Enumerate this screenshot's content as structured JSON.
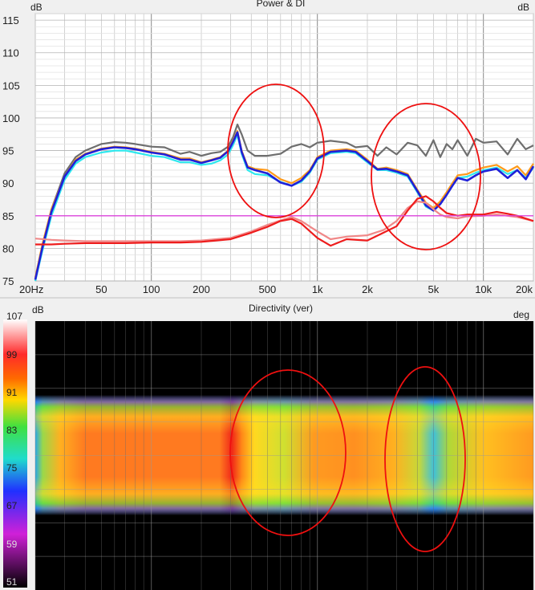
{
  "chart_data": [
    {
      "type": "line",
      "title": "Power & DI",
      "y_unit_left": "dB",
      "y_unit_right": "dB",
      "x_scale": "log",
      "xlim": [
        20,
        20000
      ],
      "ylim": [
        75,
        116
      ],
      "x_ticks": [
        20,
        50,
        100,
        200,
        500,
        1000,
        2000,
        5000,
        10000,
        20000
      ],
      "x_tick_labels": [
        "20Hz",
        "50",
        "100",
        "200",
        "500",
        "1k",
        "2k",
        "5k",
        "10k",
        "20k"
      ],
      "y_ticks": [
        75,
        80,
        85,
        90,
        95,
        100,
        105,
        110,
        115
      ],
      "y_tick_labels": [
        "75",
        "80",
        "85",
        "90",
        "95",
        "100",
        "105",
        "110",
        "115"
      ],
      "grid": true,
      "series": [
        {
          "color": "#6e6e6e",
          "width": 2.2,
          "x": [
            20,
            22,
            25,
            30,
            35,
            40,
            50,
            60,
            70,
            80,
            100,
            120,
            150,
            170,
            200,
            230,
            260,
            290,
            310,
            330,
            350,
            380,
            420,
            500,
            600,
            700,
            800,
            900,
            1000,
            1200,
            1500,
            1700,
            2000,
            2300,
            2600,
            3000,
            3500,
            4000,
            4500,
            5000,
            5500,
            6000,
            6500,
            7000,
            8000,
            9000,
            10000,
            12000,
            14000,
            16000,
            18000,
            20000
          ],
          "values": [
            75,
            80,
            86,
            91.5,
            94,
            95,
            96,
            96.3,
            96.2,
            96,
            95.6,
            95.5,
            94.5,
            94.8,
            94.2,
            94.6,
            94.8,
            95.6,
            97,
            99,
            97.5,
            95,
            94.2,
            94.2,
            94.5,
            95.6,
            96,
            95.5,
            96.2,
            96.5,
            96.2,
            95.5,
            95.7,
            94.2,
            95.5,
            94.4,
            96.2,
            95.8,
            94.2,
            96.6,
            94,
            96,
            95.2,
            96.6,
            94.2,
            96.8,
            96.2,
            96.4,
            94.4,
            96.8,
            95.2,
            95.8
          ]
        },
        {
          "color": "#ff9a1a",
          "width": 2.2,
          "x": [
            20,
            22,
            25,
            30,
            35,
            40,
            50,
            60,
            70,
            80,
            100,
            120,
            150,
            170,
            200,
            230,
            260,
            290,
            310,
            330,
            350,
            380,
            420,
            500,
            600,
            700,
            800,
            900,
            1000,
            1200,
            1500,
            1700,
            2000,
            2300,
            2600,
            3000,
            3500,
            4000,
            4500,
            5000,
            5500,
            6000,
            6500,
            7000,
            8000,
            9000,
            10000,
            12000,
            14000,
            16000,
            18000,
            20000
          ],
          "values": [
            75.5,
            80.5,
            86,
            91,
            93.6,
            94.5,
            95.3,
            95.6,
            95.5,
            95.3,
            94.8,
            94.5,
            93.8,
            93.8,
            93.2,
            93.6,
            94,
            95,
            96.5,
            98,
            95,
            92.6,
            92.2,
            92,
            90.6,
            90,
            90.8,
            92,
            94,
            95,
            95.2,
            95,
            93.6,
            92.2,
            92.4,
            92,
            91.4,
            89,
            87,
            86.2,
            87.2,
            88.6,
            90,
            91.2,
            91.4,
            92,
            92.4,
            92.8,
            91.8,
            92.6,
            91.2,
            93
          ]
        },
        {
          "color": "#2ee8ee",
          "width": 2.2,
          "x": [
            20,
            22,
            25,
            30,
            35,
            40,
            50,
            60,
            70,
            80,
            100,
            120,
            150,
            170,
            200,
            230,
            260,
            290,
            310,
            330,
            350,
            380,
            420,
            500,
            600,
            700,
            800,
            900,
            1000,
            1200,
            1500,
            1700,
            2000,
            2300,
            2600,
            3000,
            3500,
            4000,
            4500,
            5000,
            5500,
            6000,
            6500,
            7000,
            8000,
            9000,
            10000,
            12000,
            14000,
            16000,
            18000,
            20000
          ],
          "values": [
            75,
            79.5,
            85,
            90.5,
            93,
            94,
            94.7,
            95,
            95,
            94.7,
            94.2,
            94,
            93.2,
            93.2,
            92.8,
            93,
            93.5,
            94.4,
            95.8,
            97.4,
            94.5,
            92,
            91.4,
            91.2,
            90.2,
            89.6,
            90.2,
            91.6,
            93.6,
            94.6,
            94.8,
            94.6,
            93.2,
            92,
            92,
            91.6,
            91,
            88.6,
            86.4,
            85.8,
            86.8,
            88.2,
            89.6,
            90.8,
            91,
            91.6,
            92,
            92.4,
            91.4,
            92,
            90.8,
            92.4
          ]
        },
        {
          "color": "#2020d8",
          "width": 2.6,
          "x": [
            20,
            22,
            25,
            30,
            35,
            40,
            50,
            60,
            70,
            80,
            100,
            120,
            150,
            170,
            200,
            230,
            260,
            290,
            310,
            330,
            350,
            380,
            420,
            500,
            600,
            700,
            800,
            900,
            1000,
            1200,
            1500,
            1700,
            2000,
            2300,
            2600,
            3000,
            3500,
            4000,
            4500,
            5000,
            5500,
            6000,
            6500,
            7000,
            8000,
            9000,
            10000,
            12000,
            14000,
            16000,
            18000,
            20000
          ],
          "values": [
            75.2,
            80,
            85.6,
            91,
            93.4,
            94.4,
            95.2,
            95.5,
            95.4,
            95.2,
            94.7,
            94.4,
            93.6,
            93.6,
            93.1,
            93.5,
            93.9,
            94.9,
            96.3,
            97.8,
            94.8,
            92.4,
            92,
            91.5,
            90.1,
            89.6,
            90.4,
            91.8,
            93.8,
            94.8,
            95,
            94.8,
            93.4,
            92.1,
            92.2,
            91.8,
            91.2,
            88.8,
            86.6,
            85.8,
            86.8,
            88.2,
            89.6,
            90.8,
            90.4,
            91.2,
            91.8,
            92.2,
            90.8,
            92,
            90.6,
            92.6
          ]
        },
        {
          "color": "#f08888",
          "width": 2.2,
          "x": [
            20,
            25,
            30,
            40,
            50,
            70,
            100,
            150,
            200,
            300,
            400,
            500,
            600,
            700,
            800,
            1000,
            1200,
            1500,
            2000,
            2500,
            3000,
            3500,
            4000,
            4500,
            5000,
            5500,
            6000,
            7000,
            8000,
            10000,
            12000,
            14000,
            16000,
            20000
          ],
          "values": [
            81.5,
            81.3,
            81.2,
            81.1,
            81.1,
            81.1,
            81.1,
            81.1,
            81.2,
            81.6,
            82.6,
            83.6,
            84.3,
            84.8,
            84.2,
            82.6,
            81.4,
            81.8,
            82,
            82.8,
            84.2,
            86.2,
            87.2,
            87,
            86,
            85.2,
            84.8,
            84.6,
            84.9,
            85,
            85.2,
            85,
            84.8,
            84.2
          ]
        },
        {
          "color": "#ee1c1c",
          "width": 2.2,
          "x": [
            20,
            25,
            30,
            40,
            50,
            70,
            100,
            150,
            200,
            300,
            400,
            500,
            600,
            700,
            800,
            1000,
            1200,
            1500,
            2000,
            2500,
            3000,
            3500,
            4000,
            4500,
            5000,
            5500,
            6000,
            7000,
            8000,
            10000,
            12000,
            14000,
            16000,
            20000
          ],
          "values": [
            80.6,
            80.6,
            80.7,
            80.8,
            80.8,
            80.8,
            80.9,
            80.9,
            81,
            81.4,
            82.4,
            83.3,
            84.2,
            84.5,
            83.8,
            81.6,
            80.4,
            81.4,
            81.2,
            82.4,
            83.4,
            85.8,
            87.6,
            88,
            87.2,
            86.2,
            85.4,
            85,
            85.2,
            85.2,
            85.6,
            85.3,
            85,
            84.2
          ]
        },
        {
          "color": "#dd44dd",
          "width": 1.4,
          "x": [
            20,
            20000
          ],
          "values": [
            85,
            85
          ]
        }
      ]
    },
    {
      "type": "heatmap",
      "title": "Directivity (ver)",
      "y_unit_left": "dB",
      "y_unit_right": "deg",
      "colorbar_labels": [
        "107",
        "99",
        "91",
        "83",
        "75",
        "67",
        "59",
        "51"
      ],
      "colorbar_colors": [
        "#ffffff",
        "#ff2020",
        "#ffdd00",
        "#22dd22",
        "#22dddd",
        "#2222ff",
        "#dd22dd",
        "#000000"
      ],
      "x_scale": "log",
      "xlim": [
        20,
        20000
      ],
      "background": "#000000"
    }
  ]
}
